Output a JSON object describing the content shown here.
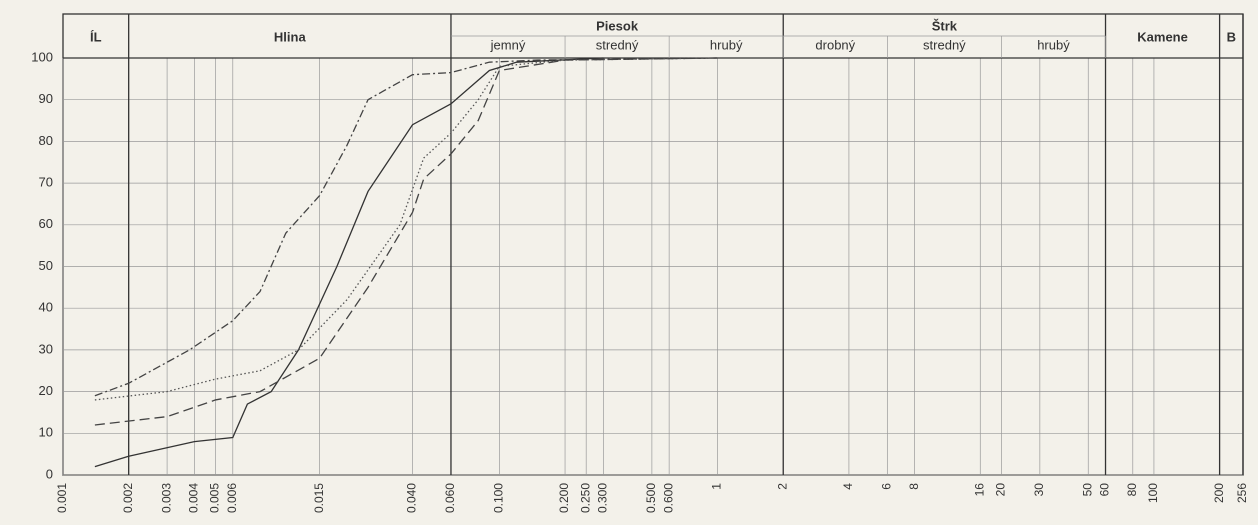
{
  "chart_data": {
    "type": "line",
    "log_x": true,
    "grid": true,
    "xlim": [
      0.001,
      256
    ],
    "ylim": [
      0,
      100
    ],
    "yticks": [
      0,
      10,
      20,
      30,
      40,
      50,
      60,
      70,
      80,
      90,
      100
    ],
    "xticks": [
      {
        "value": 0.001,
        "label": "0.001"
      },
      {
        "value": 0.002,
        "label": "0.002"
      },
      {
        "value": 0.003,
        "label": "0.003"
      },
      {
        "value": 0.004,
        "label": "0.004"
      },
      {
        "value": 0.005,
        "label": "0.005"
      },
      {
        "value": 0.006,
        "label": "0.006"
      },
      {
        "value": 0.015,
        "label": "0.015"
      },
      {
        "value": 0.04,
        "label": "0.040"
      },
      {
        "value": 0.06,
        "label": "0.060"
      },
      {
        "value": 0.1,
        "label": "0.100"
      },
      {
        "value": 0.2,
        "label": "0.200"
      },
      {
        "value": 0.25,
        "label": "0.250"
      },
      {
        "value": 0.3,
        "label": "0.300"
      },
      {
        "value": 0.5,
        "label": "0.500"
      },
      {
        "value": 0.6,
        "label": "0.600"
      },
      1,
      2,
      4,
      6,
      8,
      16,
      20,
      30,
      50,
      60,
      80,
      100,
      200,
      256
    ],
    "groups": [
      {
        "label": "ÍL",
        "from": 0.001,
        "to": 0.002
      },
      {
        "label": "Hlina",
        "from": 0.002,
        "to": 0.06
      },
      {
        "label": "Piesok",
        "from": 0.06,
        "to": 2
      },
      {
        "label": "Štrk",
        "from": 2,
        "to": 60
      },
      {
        "label": "Kamene",
        "from": 60,
        "to": 200
      },
      {
        "label": "B",
        "from": 200,
        "to": 256
      }
    ],
    "subgroups": [
      {
        "label": "jemný",
        "from": 0.06,
        "to": 0.2
      },
      {
        "label": "stredný",
        "from": 0.2,
        "to": 0.6
      },
      {
        "label": "hrubý",
        "from": 0.6,
        "to": 2
      },
      {
        "label": "drobný",
        "from": 2,
        "to": 6
      },
      {
        "label": "stredný",
        "from": 6,
        "to": 20
      },
      {
        "label": "hrubý",
        "from": 20,
        "to": 60
      }
    ],
    "series": [
      {
        "color": "#444444",
        "dash": "8 3 2 3",
        "x": [
          0.0014,
          0.002,
          0.0038,
          0.006,
          0.008,
          0.0105,
          0.015,
          0.02,
          0.025,
          0.04,
          0.06,
          0.09,
          0.15,
          1
        ],
        "values": [
          19,
          22,
          30,
          37,
          44,
          58,
          67,
          79,
          90,
          96,
          96.5,
          99,
          99.5,
          100
        ]
      },
      {
        "color": "#333333",
        "dash": "none",
        "x": [
          0.0014,
          0.002,
          0.004,
          0.006,
          0.007,
          0.009,
          0.012,
          0.018,
          0.025,
          0.04,
          0.06,
          0.09,
          0.12,
          0.3
        ],
        "values": [
          2,
          4.5,
          8,
          9,
          17,
          20,
          30,
          50,
          68,
          84,
          89,
          97,
          99,
          100
        ]
      },
      {
        "color": "#555555",
        "dash": "1.5 2.5",
        "x": [
          0.0014,
          0.003,
          0.005,
          0.008,
          0.012,
          0.02,
          0.035,
          0.045,
          0.06,
          0.08,
          0.1,
          0.2,
          1
        ],
        "values": [
          18,
          20,
          23,
          25,
          30,
          42,
          60,
          76,
          82,
          90,
          98,
          99.5,
          100
        ]
      },
      {
        "color": "#444444",
        "dash": "10 5",
        "x": [
          0.0014,
          0.003,
          0.005,
          0.008,
          0.015,
          0.025,
          0.04,
          0.045,
          0.06,
          0.08,
          0.1,
          0.2,
          1
        ],
        "values": [
          12,
          14,
          18,
          20,
          28,
          45,
          63,
          71,
          77,
          85,
          97,
          99.5,
          100
        ]
      }
    ]
  }
}
